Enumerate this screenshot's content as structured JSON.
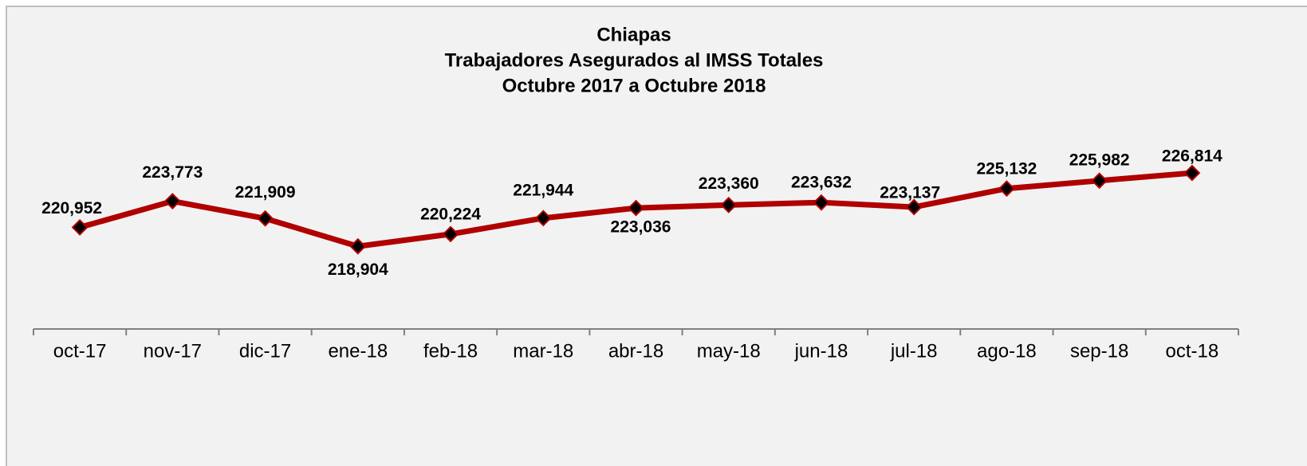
{
  "chart_data": {
    "type": "line",
    "title": [
      "Chiapas",
      "Trabajadores Asegurados al IMSS Totales",
      "Octubre 2017 a Octubre 2018"
    ],
    "categories": [
      "oct-17",
      "nov-17",
      "dic-17",
      "ene-18",
      "feb-18",
      "mar-18",
      "abr-18",
      "may-18",
      "jun-18",
      "jul-18",
      "ago-18",
      "sep-18",
      "oct-18"
    ],
    "series": [
      {
        "color": "#b00000",
        "values": [
          220952,
          223773,
          221909,
          218904,
          220224,
          221944,
          223036,
          223360,
          223632,
          223137,
          225132,
          225982,
          226814
        ],
        "value_labels": [
          "220,952",
          "223,773",
          "221,909",
          "218,904",
          "220,224",
          "221,944",
          "223,036",
          "223,360",
          "223,632",
          "223,137",
          "225,132",
          "225,982",
          "226,814"
        ]
      }
    ],
    "ylim": [
      210000,
      230000
    ]
  }
}
